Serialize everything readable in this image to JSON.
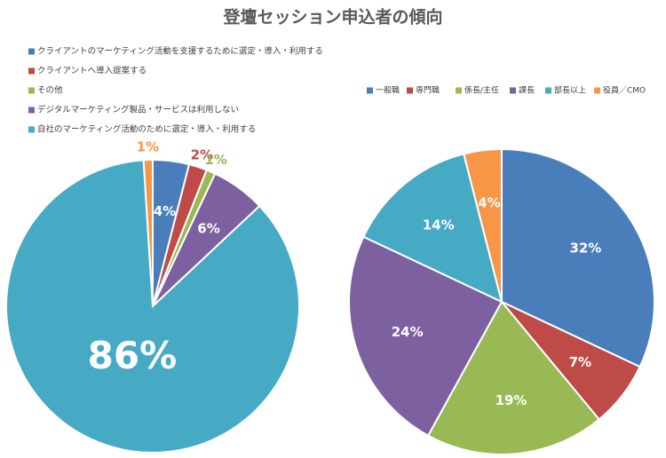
{
  "title": "登壇セッション申込者の傾向",
  "chart_data": [
    {
      "type": "pie",
      "categories": [
        "クライアントのマーケティング活動を支援するために選定・導入・利用する",
        "クライアントへ導入提案する",
        "その他",
        "デジタルマーケティング製品・サービスは利用しない",
        "自社のマーケティング活動のために選定・導入・利用する",
        null
      ],
      "values": [
        4,
        2,
        1,
        6,
        86,
        1
      ],
      "value_labels": [
        "4%",
        "2%",
        "1%",
        "6%",
        "86%",
        "1%"
      ],
      "colors": [
        "#4a7ebb",
        "#be4b48",
        "#98b954",
        "#7d60a0",
        "#46aac5",
        "#f79646"
      ],
      "legend": "top-left"
    },
    {
      "type": "pie",
      "categories": [
        "一般職",
        "専門職",
        "係長/主任",
        "課長",
        "部長以上",
        "役員／CMO"
      ],
      "values": [
        32,
        7,
        19,
        24,
        14,
        4
      ],
      "value_labels": [
        "32%",
        "7%",
        "19%",
        "24%",
        "14%",
        "4%"
      ],
      "colors": [
        "#4a7ebb",
        "#be4b48",
        "#98b954",
        "#7d60a0",
        "#46aac5",
        "#f79646"
      ],
      "legend": "top"
    }
  ]
}
